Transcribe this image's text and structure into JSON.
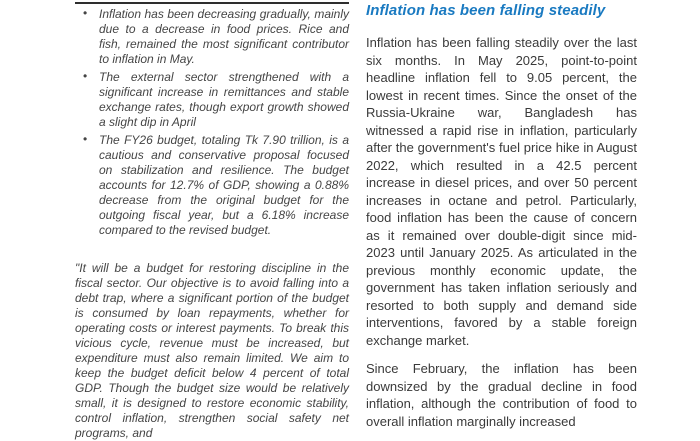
{
  "left_column": {
    "bullet_char": "•",
    "bullets": [
      "Inflation has been decreasing gradually, mainly due to a decrease in food prices. Rice and fish, remained the most significant contributor to inflation in May.",
      "The external sector strengthened with a significant increase in remittances and stable exchange rates, though export growth showed a slight dip in April",
      "The FY26 budget, totaling Tk 7.90 trillion, is a cautious and conservative proposal focused on stabilization and resilience. The budget accounts for 12.7% of GDP, showing a 0.88% decrease from the original budget for the outgoing fiscal year, but a 6.18% increase compared to the revised budget."
    ],
    "quote": "\"It will be a budget for restoring discipline in the fiscal sector. Our objective is to avoid falling into a debt trap, where a significant portion of the budget is consumed by loan repayments, whether for operating costs or interest payments. To break this vicious cycle, revenue must be increased, but expenditure must also remain limited. We aim to keep the budget deficit below 4 percent of total GDP. Though the budget size would be relatively small, it is designed to restore economic stability, control inflation, strengthen social safety net programs, and"
  },
  "right_column": {
    "heading": "Inflation has been falling steadily",
    "paragraphs": [
      "Inflation has been falling steadily over the last six months. In May 2025, point-to-point headline inflation fell to 9.05 percent, the lowest in recent times. Since the onset of the Russia-Ukraine war, Bangladesh has witnessed a rapid rise in inflation, particularly after the government's fuel price hike in August 2022, which resulted in a 42.5 percent increase in diesel prices, and over 50 percent increases in octane and petrol. Particularly, food inflation has been the cause of concern as it remained over double-digit since mid-2023 until January 2025. As articulated in the previous monthly economic update, the government has taken inflation seriously and resorted to both supply and demand side interventions, favored by a stable foreign exchange market.",
      "Since February, the inflation has been downsized by the gradual decline in food inflation, although the contribution of food to overall inflation marginally increased"
    ]
  },
  "colors": {
    "heading_blue": "#1a7ac1",
    "body_text": "#3a3a3a",
    "left_text": "#454545",
    "rule": "#2e2e2e"
  }
}
